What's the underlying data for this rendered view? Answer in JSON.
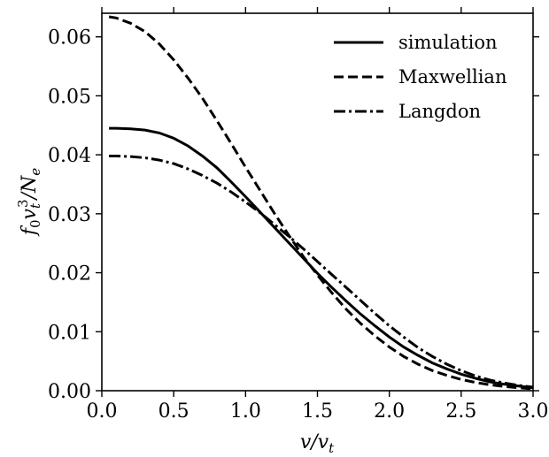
{
  "chart_data": {
    "type": "line",
    "x": [
      0.05,
      0.1,
      0.2,
      0.3,
      0.4,
      0.5,
      0.6,
      0.7,
      0.8,
      0.9,
      1.0,
      1.1,
      1.2,
      1.3,
      1.4,
      1.5,
      1.6,
      1.7,
      1.8,
      1.9,
      2.0,
      2.1,
      2.2,
      2.3,
      2.4,
      2.5,
      2.6,
      2.7,
      2.8,
      2.9,
      3.0
    ],
    "series": [
      {
        "name": "simulation",
        "style": "solid",
        "values": [
          0.0445,
          0.0445,
          0.0444,
          0.0442,
          0.0437,
          0.0428,
          0.0415,
          0.0398,
          0.0378,
          0.0354,
          0.0329,
          0.0303,
          0.0277,
          0.0251,
          0.0225,
          0.0199,
          0.0175,
          0.0152,
          0.013,
          0.011,
          0.0091,
          0.0074,
          0.006,
          0.0047,
          0.0037,
          0.0028,
          0.0021,
          0.0015,
          0.0011,
          0.0008,
          0.0005
        ]
      },
      {
        "name": "Maxwellian",
        "style": "dashed",
        "values": [
          0.0634,
          0.0632,
          0.0623,
          0.0609,
          0.0588,
          0.0561,
          0.053,
          0.0496,
          0.0458,
          0.0419,
          0.0379,
          0.034,
          0.0301,
          0.0264,
          0.0228,
          0.0196,
          0.0166,
          0.0138,
          0.0114,
          0.0093,
          0.0074,
          0.0058,
          0.0045,
          0.0034,
          0.0026,
          0.0019,
          0.0014,
          0.001,
          0.0007,
          0.0005,
          0.0003
        ]
      },
      {
        "name": "Langdon",
        "style": "dashdot",
        "values": [
          0.0398,
          0.0398,
          0.0397,
          0.0395,
          0.0391,
          0.0385,
          0.0376,
          0.0365,
          0.0352,
          0.0337,
          0.032,
          0.0302,
          0.0282,
          0.0262,
          0.0241,
          0.0219,
          0.0197,
          0.0175,
          0.0153,
          0.0131,
          0.011,
          0.0091,
          0.0073,
          0.0058,
          0.0045,
          0.0034,
          0.0025,
          0.0018,
          0.0013,
          0.0009,
          0.0006
        ]
      }
    ],
    "xlim": [
      0.0,
      3.0
    ],
    "ylim": [
      0.0,
      0.064
    ],
    "xticks": [
      "0.0",
      "0.5",
      "1.0",
      "1.5",
      "2.0",
      "2.5",
      "3.0"
    ],
    "yticks": [
      "0.00",
      "0.01",
      "0.02",
      "0.03",
      "0.04",
      "0.05",
      "0.06"
    ],
    "xlabel": "v/v",
    "xlabel_sub": "t",
    "ylabel": "f",
    "ylabel_parts": {
      "f_sub": "0",
      "v": "v",
      "v_sub": "t",
      "v_sup": "3",
      "slash": "/N",
      "n_sub": "e"
    },
    "legend_position": "top-right",
    "grid": false
  }
}
